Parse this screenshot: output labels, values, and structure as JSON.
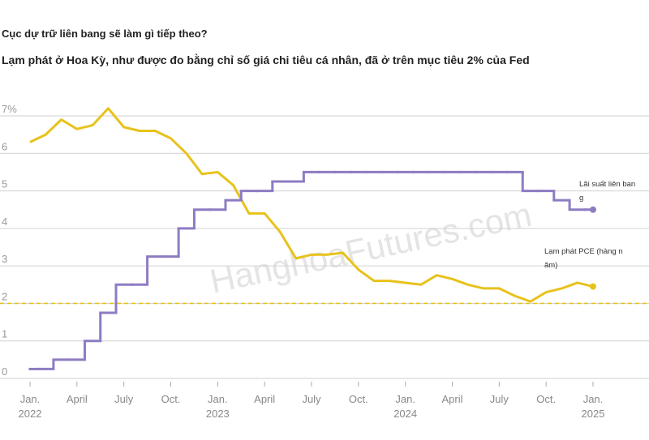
{
  "chart_data": {
    "type": "line",
    "title": "Cục dự trữ liên bang sẽ làm gì tiếp theo?",
    "subtitle": "Lạm phát ở Hoa Kỳ, như được đo bằng chỉ số giá chi tiêu cá nhân, đã ở trên mục tiêu 2% của Fed",
    "watermark": "HanghoaFutures.com",
    "categories": [
      "Jan.",
      null,
      null,
      "April",
      null,
      null,
      "July",
      null,
      null,
      "Oct.",
      null,
      null,
      "Jan.",
      null,
      null,
      "April",
      null,
      null,
      "July",
      null,
      null,
      "Oct.",
      null,
      null,
      "Jan.",
      null,
      null,
      "April",
      null,
      null,
      "July",
      null,
      null,
      "Oct.",
      null,
      null,
      "Jan."
    ],
    "years": [
      {
        "category": 0,
        "label": "2022"
      },
      {
        "category": 12,
        "label": "2023"
      },
      {
        "category": 24,
        "label": "2024"
      },
      {
        "category": 36,
        "label": "2025"
      }
    ],
    "series": [
      {
        "name": "Lạm phát PCE (hàng năm)",
        "color": "#e8c21c",
        "values": [
          6.3,
          6.5,
          6.9,
          6.65,
          6.75,
          7.2,
          6.7,
          6.6,
          6.6,
          6.4,
          6.0,
          5.45,
          5.5,
          5.15,
          4.4,
          4.4,
          3.9,
          3.2,
          3.3,
          3.3,
          3.35,
          2.9,
          2.6,
          2.6,
          2.55,
          2.5,
          2.75,
          2.65,
          2.5,
          2.4,
          2.4,
          2.2,
          2.05,
          2.3,
          2.4,
          2.55,
          2.45
        ]
      },
      {
        "name": "Lãi suất liên bang",
        "color": "#8e7cc3",
        "step": true,
        "values": [
          0.25,
          0.25,
          0.5,
          0.5,
          1.0,
          1.75,
          2.5,
          2.5,
          3.25,
          3.25,
          4.0,
          4.5,
          4.5,
          4.75,
          5.0,
          5.0,
          5.25,
          5.25,
          5.5,
          5.5,
          5.5,
          5.5,
          5.5,
          5.5,
          5.5,
          5.5,
          5.5,
          5.5,
          5.5,
          5.5,
          5.5,
          5.5,
          5.0,
          5.0,
          4.75,
          4.5,
          4.5
        ]
      }
    ],
    "ylim": [
      0,
      7
    ],
    "yticks": [
      0,
      1,
      2,
      3,
      4,
      5,
      6,
      {
        "value": 7,
        "label": "7%"
      }
    ],
    "target_line": 2,
    "grid": true
  }
}
